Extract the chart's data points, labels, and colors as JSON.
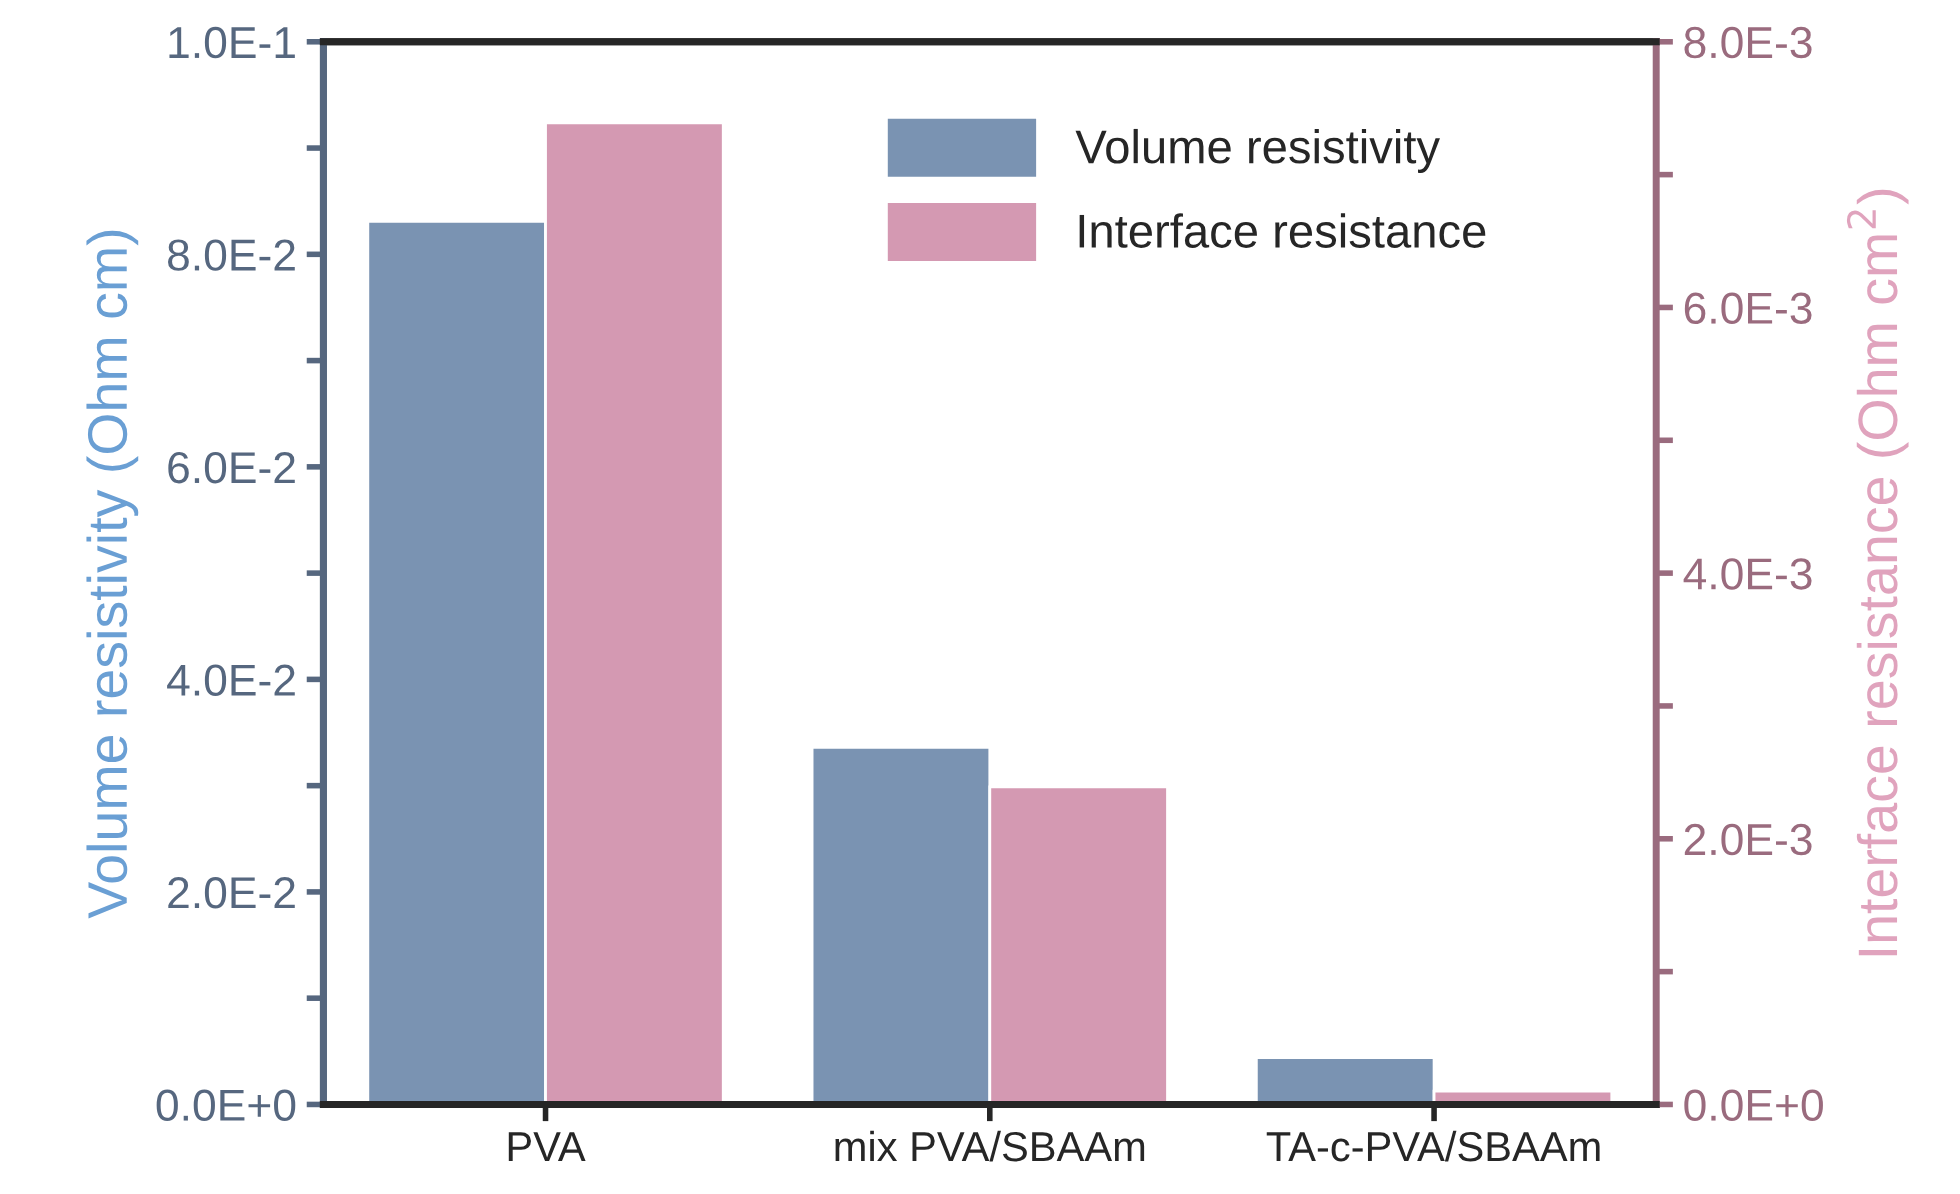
{
  "chart_data": {
    "type": "bar",
    "categories": [
      "PVA",
      "mix PVA/SBAAm",
      "TA-c-PVA/SBAAm"
    ],
    "ylabel": "Volume resistivity (Ohm cm)",
    "y2label": "Interface resistance (Ohm cm$^{2}$)",
    "series": [
      {
        "name": "Volume resistivity",
        "color": "#7a93b2",
        "values": [
          0.0831,
          0.0336,
          0.0044
        ]
      },
      {
        "name": "Interface resistance",
        "color": "#d499b2",
        "values": [
          0.00739,
          0.00239,
          0.0001
        ],
        "axis": "y2"
      }
    ],
    "ylim": [
      0,
      0.1
    ],
    "yticks": [
      {
        "value": 0,
        "label": "0.0E+0"
      },
      {
        "value": 0.01,
        "label": null
      },
      {
        "value": 0.02,
        "label": "2.0E-2"
      },
      {
        "value": 0.03,
        "label": null
      },
      {
        "value": 0.04,
        "label": "4.0E-2"
      },
      {
        "value": 0.05,
        "label": null
      },
      {
        "value": 0.06,
        "label": "6.0E-2"
      },
      {
        "value": 0.07,
        "label": null
      },
      {
        "value": 0.08,
        "label": "8.0E-2"
      },
      {
        "value": 0.09,
        "label": null
      },
      {
        "value": 0.1,
        "label": "1.0E-1"
      }
    ],
    "y2lim": [
      0,
      0.008
    ],
    "y2ticks": [
      {
        "value": 0,
        "label": "0.0E+0"
      },
      {
        "value": 0.001,
        "label": null
      },
      {
        "value": 0.002,
        "label": "2.0E-3"
      },
      {
        "value": 0.003,
        "label": null
      },
      {
        "value": 0.004,
        "label": "4.0E-3"
      },
      {
        "value": 0.005,
        "label": null
      },
      {
        "value": 0.006,
        "label": "6.0E-3"
      },
      {
        "value": 0.007,
        "label": null
      },
      {
        "value": 0.008,
        "label": "8.0E-3"
      }
    ],
    "grid": false,
    "legend": "top right"
  }
}
